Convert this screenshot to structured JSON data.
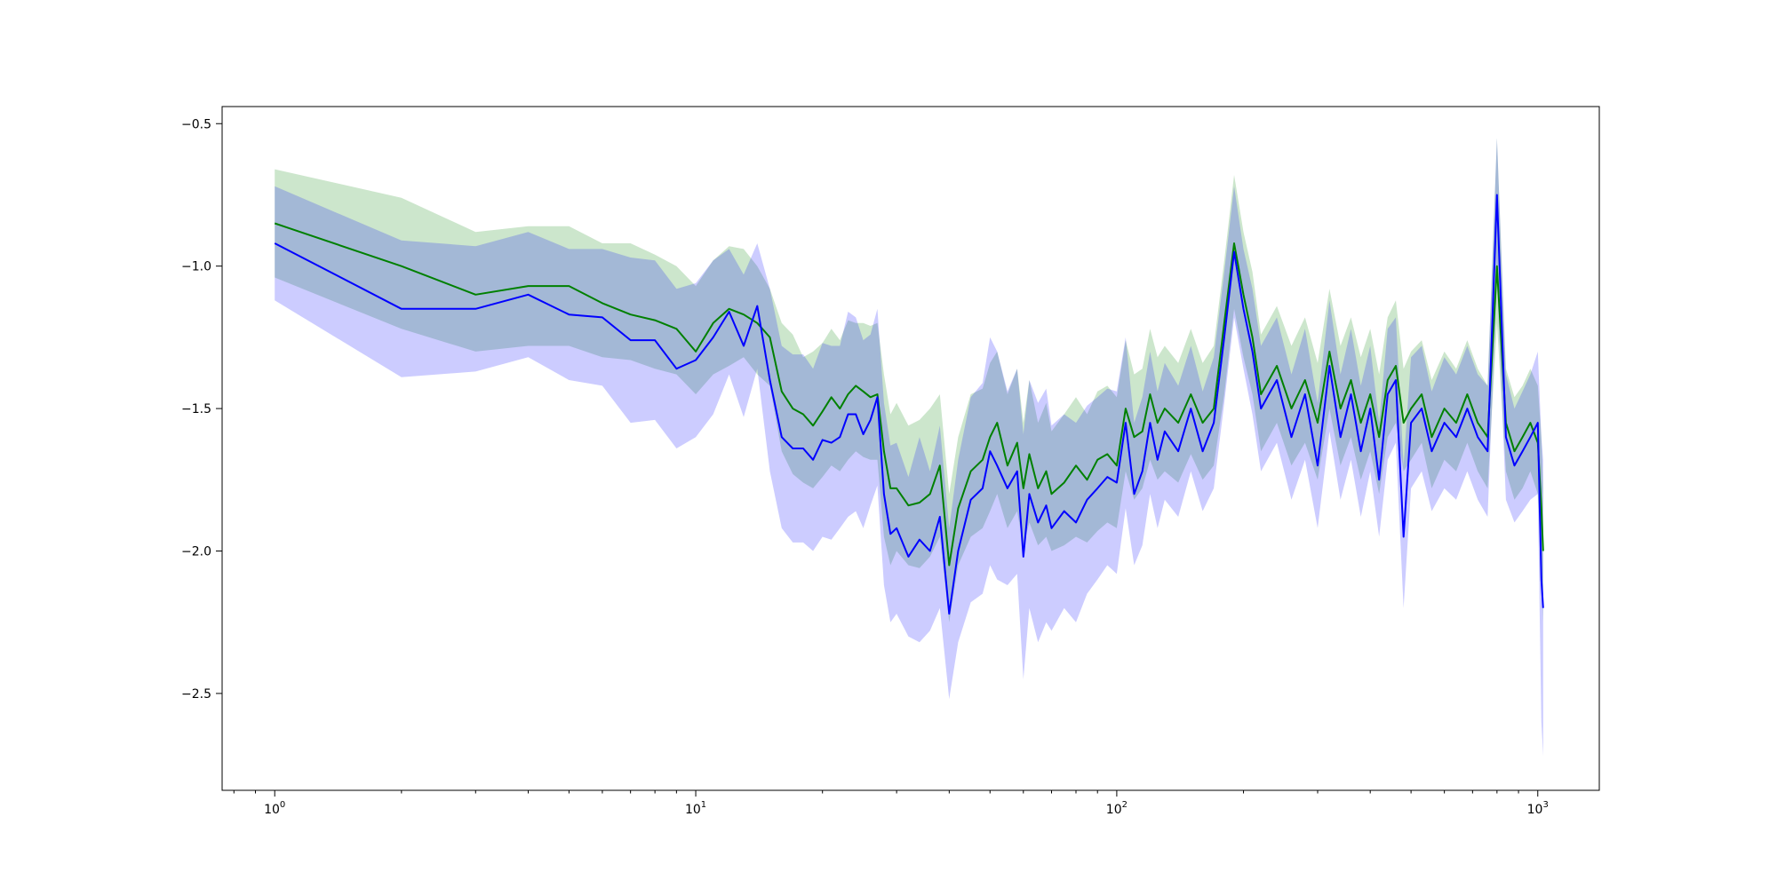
{
  "chart_data": {
    "type": "line",
    "title": "",
    "xlabel": "",
    "ylabel": "",
    "xscale": "log",
    "xlim": [
      0.75,
      1400
    ],
    "ylim": [
      -2.84,
      -0.44
    ],
    "grid": false,
    "x_ticks": [
      {
        "value": 1,
        "base": "10",
        "exp": "0"
      },
      {
        "value": 10,
        "base": "10",
        "exp": "1"
      },
      {
        "value": 100,
        "base": "10",
        "exp": "2"
      },
      {
        "value": 1000,
        "base": "10",
        "exp": "3"
      }
    ],
    "y_ticks": [
      {
        "value": -0.5,
        "label": "−0.5"
      },
      {
        "value": -1.0,
        "label": "−1.0"
      },
      {
        "value": -1.5,
        "label": "−1.5"
      },
      {
        "value": -2.0,
        "label": "−2.0"
      },
      {
        "value": -2.5,
        "label": "−2.5"
      }
    ],
    "series": [
      {
        "color": "#008000",
        "band_color": "#008000",
        "band_opacity": 0.2,
        "x": [
          1,
          2,
          3,
          4,
          5,
          6,
          7,
          8,
          9,
          10,
          11,
          12,
          13,
          14,
          15,
          16,
          17,
          18,
          19,
          20,
          21,
          22,
          23,
          24,
          25,
          26,
          27,
          28,
          29,
          30,
          32,
          34,
          36,
          38,
          40,
          42,
          45,
          48,
          50,
          52,
          55,
          58,
          60,
          62,
          65,
          68,
          70,
          75,
          80,
          85,
          90,
          95,
          100,
          105,
          110,
          115,
          120,
          125,
          130,
          140,
          150,
          160,
          170,
          180,
          190,
          200,
          210,
          220,
          240,
          260,
          280,
          300,
          320,
          340,
          360,
          380,
          400,
          420,
          440,
          460,
          480,
          500,
          530,
          560,
          600,
          640,
          680,
          720,
          760,
          800,
          840,
          880,
          920,
          960,
          1000,
          1020,
          1030
        ],
        "y": [
          -0.85,
          -1.0,
          -1.1,
          -1.07,
          -1.07,
          -1.13,
          -1.17,
          -1.19,
          -1.22,
          -1.3,
          -1.2,
          -1.15,
          -1.17,
          -1.2,
          -1.25,
          -1.44,
          -1.5,
          -1.52,
          -1.56,
          -1.51,
          -1.46,
          -1.5,
          -1.45,
          -1.42,
          -1.44,
          -1.46,
          -1.45,
          -1.65,
          -1.78,
          -1.78,
          -1.84,
          -1.83,
          -1.8,
          -1.7,
          -2.05,
          -1.85,
          -1.72,
          -1.68,
          -1.6,
          -1.55,
          -1.7,
          -1.62,
          -1.78,
          -1.66,
          -1.78,
          -1.72,
          -1.8,
          -1.76,
          -1.7,
          -1.75,
          -1.68,
          -1.66,
          -1.7,
          -1.5,
          -1.6,
          -1.58,
          -1.45,
          -1.55,
          -1.5,
          -1.55,
          -1.45,
          -1.55,
          -1.5,
          -1.2,
          -0.92,
          -1.1,
          -1.25,
          -1.45,
          -1.35,
          -1.5,
          -1.4,
          -1.55,
          -1.3,
          -1.5,
          -1.4,
          -1.55,
          -1.45,
          -1.6,
          -1.4,
          -1.35,
          -1.55,
          -1.5,
          -1.45,
          -1.6,
          -1.5,
          -1.55,
          -1.45,
          -1.55,
          -1.6,
          -1.0,
          -1.55,
          -1.65,
          -1.6,
          -1.55,
          -1.62,
          -1.85,
          -2.0
        ],
        "lower": [
          -1.04,
          -1.22,
          -1.3,
          -1.28,
          -1.28,
          -1.32,
          -1.33,
          -1.36,
          -1.38,
          -1.45,
          -1.38,
          -1.35,
          -1.32,
          -1.38,
          -1.42,
          -1.65,
          -1.73,
          -1.76,
          -1.78,
          -1.74,
          -1.7,
          -1.72,
          -1.68,
          -1.65,
          -1.67,
          -1.68,
          -1.68,
          -1.95,
          -2.05,
          -2.0,
          -2.05,
          -2.06,
          -2.02,
          -1.95,
          -2.25,
          -2.05,
          -1.95,
          -1.92,
          -1.86,
          -1.8,
          -1.92,
          -1.86,
          -1.98,
          -1.9,
          -1.98,
          -1.95,
          -2.0,
          -1.98,
          -1.95,
          -1.97,
          -1.93,
          -1.9,
          -1.92,
          -1.72,
          -1.82,
          -1.78,
          -1.68,
          -1.75,
          -1.72,
          -1.76,
          -1.66,
          -1.75,
          -1.7,
          -1.45,
          -1.15,
          -1.32,
          -1.45,
          -1.65,
          -1.55,
          -1.7,
          -1.62,
          -1.75,
          -1.5,
          -1.7,
          -1.6,
          -1.75,
          -1.65,
          -1.8,
          -1.6,
          -1.55,
          -1.72,
          -1.68,
          -1.62,
          -1.78,
          -1.68,
          -1.72,
          -1.62,
          -1.72,
          -1.78,
          -1.2,
          -1.72,
          -1.82,
          -1.78,
          -1.72,
          -1.8,
          -2.05,
          -2.25
        ],
        "upper": [
          -0.66,
          -0.76,
          -0.88,
          -0.86,
          -0.86,
          -0.92,
          -0.92,
          -0.96,
          -1.0,
          -1.07,
          -0.98,
          -0.93,
          -0.94,
          -1.0,
          -1.08,
          -1.2,
          -1.24,
          -1.32,
          -1.3,
          -1.27,
          -1.22,
          -1.26,
          -1.19,
          -1.2,
          -1.2,
          -1.21,
          -1.2,
          -1.38,
          -1.52,
          -1.48,
          -1.56,
          -1.54,
          -1.5,
          -1.45,
          -1.8,
          -1.6,
          -1.45,
          -1.43,
          -1.34,
          -1.3,
          -1.45,
          -1.36,
          -1.55,
          -1.4,
          -1.55,
          -1.48,
          -1.58,
          -1.52,
          -1.46,
          -1.52,
          -1.44,
          -1.42,
          -1.46,
          -1.26,
          -1.38,
          -1.36,
          -1.22,
          -1.32,
          -1.28,
          -1.34,
          -1.22,
          -1.34,
          -1.28,
          -0.98,
          -0.68,
          -0.88,
          -1.02,
          -1.24,
          -1.14,
          -1.28,
          -1.18,
          -1.34,
          -1.08,
          -1.28,
          -1.18,
          -1.32,
          -1.22,
          -1.38,
          -1.18,
          -1.12,
          -1.36,
          -1.3,
          -1.26,
          -1.4,
          -1.3,
          -1.36,
          -1.26,
          -1.36,
          -1.42,
          -0.55,
          -1.36,
          -1.46,
          -1.42,
          -1.36,
          -1.42,
          -1.6,
          -1.78
        ]
      },
      {
        "color": "#0000ff",
        "band_color": "#0000ff",
        "band_opacity": 0.2,
        "x": [
          1,
          2,
          3,
          4,
          5,
          6,
          7,
          8,
          9,
          10,
          11,
          12,
          13,
          14,
          15,
          16,
          17,
          18,
          19,
          20,
          21,
          22,
          23,
          24,
          25,
          26,
          27,
          28,
          29,
          30,
          32,
          34,
          36,
          38,
          40,
          42,
          45,
          48,
          50,
          52,
          55,
          58,
          60,
          62,
          65,
          68,
          70,
          75,
          80,
          85,
          90,
          95,
          100,
          105,
          110,
          115,
          120,
          125,
          130,
          140,
          150,
          160,
          170,
          180,
          190,
          200,
          210,
          220,
          240,
          260,
          280,
          300,
          320,
          340,
          360,
          380,
          400,
          420,
          440,
          460,
          480,
          500,
          530,
          560,
          600,
          640,
          680,
          720,
          760,
          800,
          840,
          880,
          920,
          960,
          1000,
          1020,
          1030
        ],
        "y": [
          -0.92,
          -1.15,
          -1.15,
          -1.1,
          -1.17,
          -1.18,
          -1.26,
          -1.26,
          -1.36,
          -1.33,
          -1.25,
          -1.16,
          -1.28,
          -1.14,
          -1.4,
          -1.6,
          -1.64,
          -1.64,
          -1.68,
          -1.61,
          -1.62,
          -1.6,
          -1.52,
          -1.52,
          -1.59,
          -1.54,
          -1.46,
          -1.8,
          -1.94,
          -1.92,
          -2.02,
          -1.96,
          -2.0,
          -1.88,
          -2.22,
          -2.0,
          -1.82,
          -1.78,
          -1.65,
          -1.7,
          -1.78,
          -1.72,
          -2.02,
          -1.8,
          -1.9,
          -1.84,
          -1.92,
          -1.86,
          -1.9,
          -1.82,
          -1.78,
          -1.74,
          -1.76,
          -1.55,
          -1.8,
          -1.72,
          -1.55,
          -1.68,
          -1.58,
          -1.65,
          -1.5,
          -1.65,
          -1.55,
          -1.25,
          -0.95,
          -1.15,
          -1.3,
          -1.5,
          -1.4,
          -1.6,
          -1.45,
          -1.7,
          -1.35,
          -1.6,
          -1.45,
          -1.65,
          -1.5,
          -1.75,
          -1.45,
          -1.4,
          -1.95,
          -1.55,
          -1.5,
          -1.65,
          -1.55,
          -1.6,
          -1.5,
          -1.6,
          -1.65,
          -0.75,
          -1.6,
          -1.7,
          -1.65,
          -1.6,
          -1.55,
          -2.1,
          -2.2
        ],
        "lower": [
          -1.12,
          -1.39,
          -1.37,
          -1.32,
          -1.4,
          -1.42,
          -1.55,
          -1.54,
          -1.64,
          -1.6,
          -1.52,
          -1.38,
          -1.53,
          -1.36,
          -1.72,
          -1.92,
          -1.97,
          -1.97,
          -2.0,
          -1.95,
          -1.96,
          -1.92,
          -1.88,
          -1.86,
          -1.92,
          -1.84,
          -1.77,
          -2.12,
          -2.25,
          -2.22,
          -2.3,
          -2.32,
          -2.28,
          -2.2,
          -2.52,
          -2.32,
          -2.18,
          -2.15,
          -2.05,
          -2.1,
          -2.12,
          -2.08,
          -2.45,
          -2.2,
          -2.32,
          -2.25,
          -2.28,
          -2.2,
          -2.25,
          -2.15,
          -2.1,
          -2.05,
          -2.08,
          -1.85,
          -2.05,
          -1.98,
          -1.8,
          -1.92,
          -1.82,
          -1.88,
          -1.72,
          -1.86,
          -1.78,
          -1.48,
          -1.18,
          -1.36,
          -1.52,
          -1.72,
          -1.62,
          -1.82,
          -1.68,
          -1.92,
          -1.58,
          -1.82,
          -1.68,
          -1.88,
          -1.72,
          -1.95,
          -1.68,
          -1.62,
          -2.2,
          -1.78,
          -1.72,
          -1.86,
          -1.78,
          -1.82,
          -1.72,
          -1.82,
          -1.88,
          -1.05,
          -1.82,
          -1.9,
          -1.86,
          -1.82,
          -1.8,
          -2.6,
          -2.72
        ],
        "upper": [
          -0.72,
          -0.91,
          -0.93,
          -0.88,
          -0.94,
          -0.94,
          -0.97,
          -0.98,
          -1.08,
          -1.06,
          -0.98,
          -0.94,
          -1.03,
          -0.92,
          -1.08,
          -1.28,
          -1.31,
          -1.31,
          -1.36,
          -1.27,
          -1.28,
          -1.28,
          -1.16,
          -1.18,
          -1.26,
          -1.24,
          -1.15,
          -1.48,
          -1.63,
          -1.62,
          -1.74,
          -1.6,
          -1.72,
          -1.56,
          -1.92,
          -1.68,
          -1.46,
          -1.41,
          -1.25,
          -1.3,
          -1.44,
          -1.36,
          -1.59,
          -1.4,
          -1.48,
          -1.43,
          -1.56,
          -1.52,
          -1.55,
          -1.49,
          -1.46,
          -1.43,
          -1.44,
          -1.25,
          -1.55,
          -1.46,
          -1.3,
          -1.44,
          -1.34,
          -1.42,
          -1.28,
          -1.44,
          -1.32,
          -1.02,
          -0.72,
          -0.94,
          -1.08,
          -1.28,
          -1.18,
          -1.38,
          -1.22,
          -1.48,
          -1.12,
          -1.38,
          -1.22,
          -1.42,
          -1.28,
          -1.55,
          -1.22,
          -1.18,
          -1.7,
          -1.32,
          -1.28,
          -1.44,
          -1.32,
          -1.38,
          -1.28,
          -1.38,
          -1.42,
          -0.55,
          -1.38,
          -1.5,
          -1.44,
          -1.38,
          -1.3,
          -1.6,
          -1.68
        ]
      }
    ]
  }
}
